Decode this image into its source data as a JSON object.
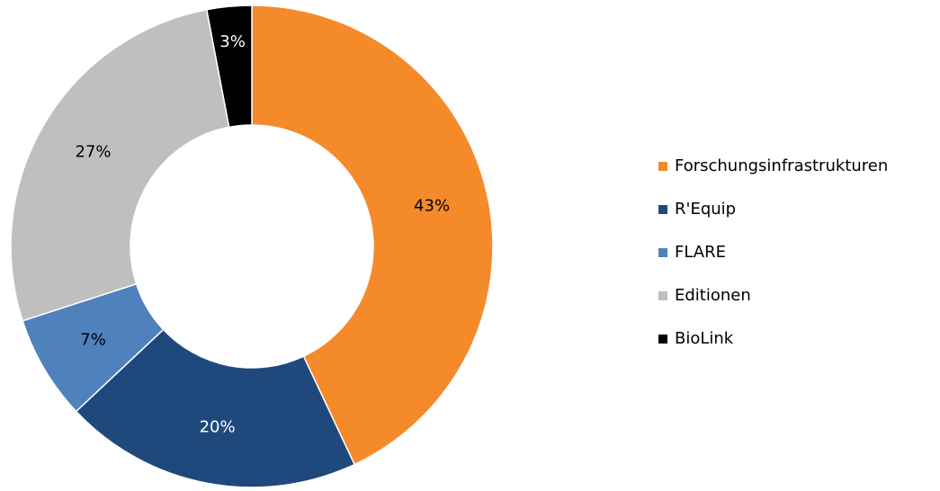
{
  "chart_data": {
    "type": "donut",
    "categories": [
      "Forschungsinfrastrukturen",
      "R'Equip",
      "FLARE",
      "Editionen",
      "BioLink"
    ],
    "values": [
      43,
      20,
      7,
      27,
      3
    ],
    "value_labels": [
      "43%",
      "20%",
      "7%",
      "27%",
      "3%"
    ],
    "colors": [
      "#f58a2b",
      "#1f497d",
      "#4f81bd",
      "#bfbfbf",
      "#000000"
    ],
    "legend": "right"
  }
}
